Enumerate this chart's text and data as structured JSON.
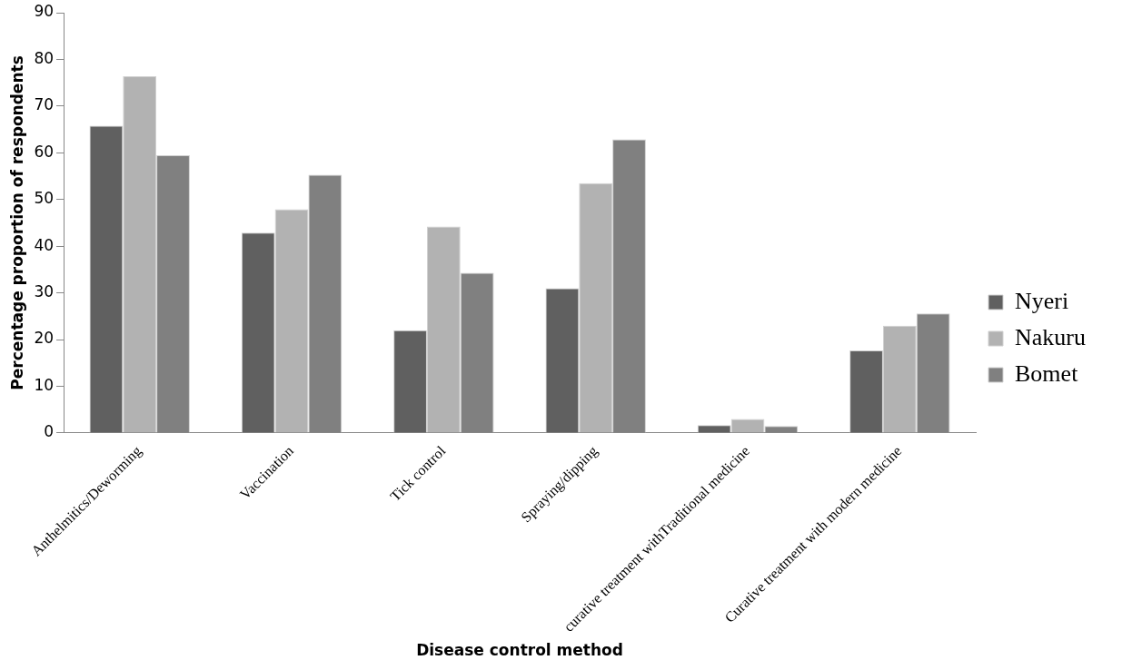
{
  "chart_data": {
    "type": "bar",
    "xlabel": "Disease control method",
    "ylabel": "Percentage proportion of respondents",
    "categories": [
      "Anthelmitics/Deworming",
      "Vaccination",
      "Tick control",
      "Spraying/dipping",
      "curative treatment withTraditional medicine",
      "Curative treatment with modern medicine"
    ],
    "series": [
      {
        "name": "Nyeri",
        "color": "#606060",
        "values": [
          65.8,
          42.9,
          22.0,
          31.0,
          1.7,
          17.7
        ]
      },
      {
        "name": "Nakuru",
        "color": "#b2b2b2",
        "values": [
          76.4,
          47.9,
          44.2,
          53.5,
          3.0,
          23.0
        ]
      },
      {
        "name": "Bomet",
        "color": "#808080",
        "values": [
          59.5,
          55.3,
          34.3,
          62.9,
          1.5,
          25.6
        ]
      }
    ],
    "ylim": [
      0,
      90
    ],
    "yticks": [
      0,
      10,
      20,
      30,
      40,
      50,
      60,
      70,
      80,
      90
    ],
    "grid": false,
    "legend": "right"
  }
}
